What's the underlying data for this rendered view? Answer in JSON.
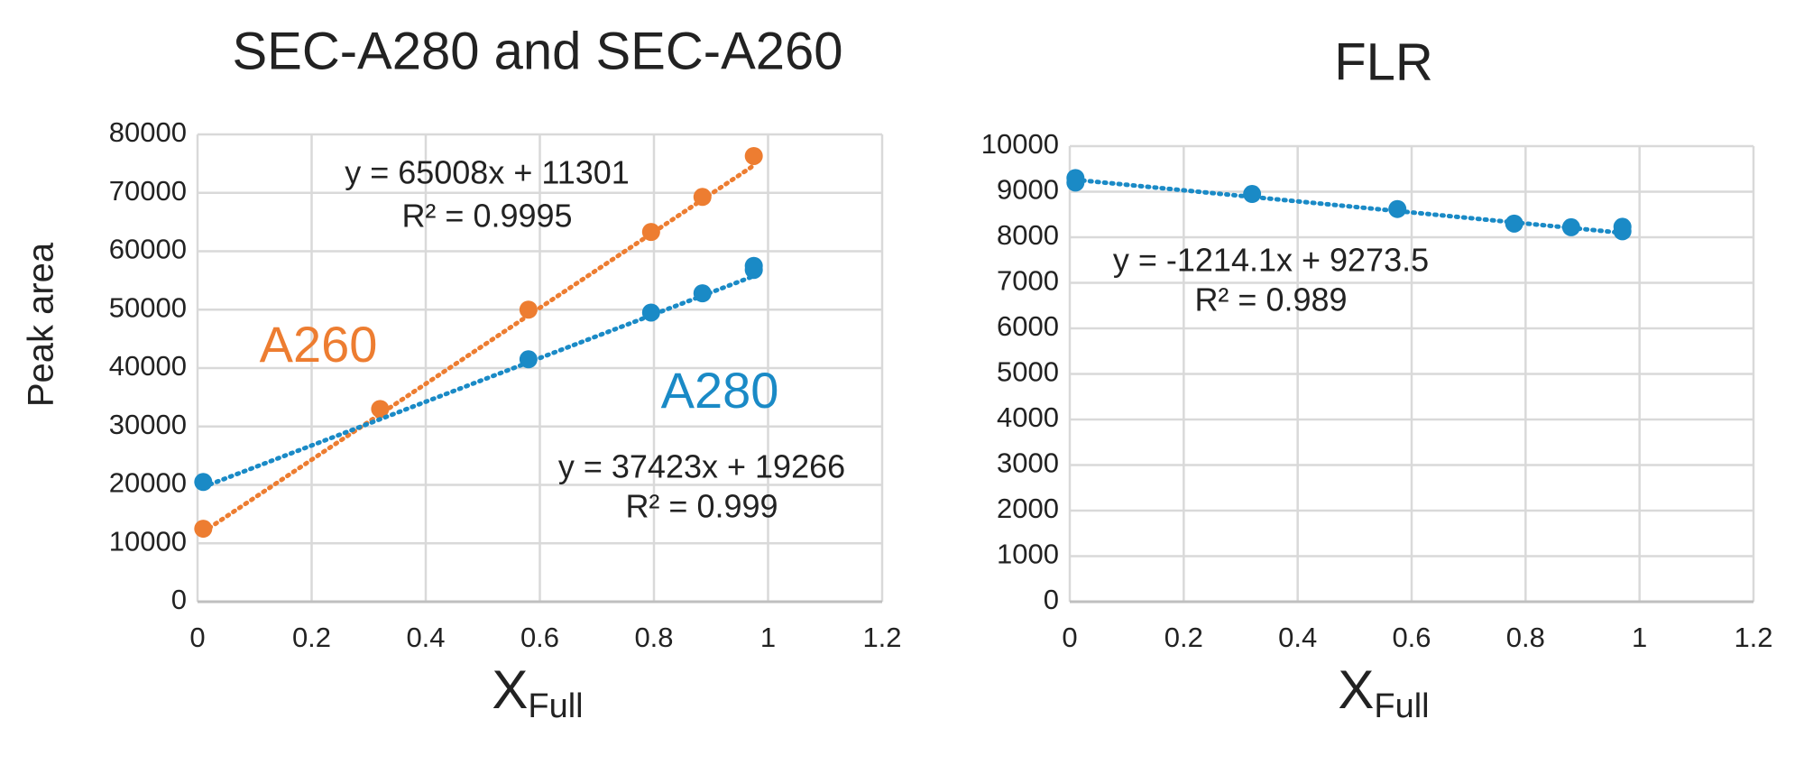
{
  "chart_data": [
    {
      "type": "scatter",
      "title": "SEC-A280 and SEC-A260",
      "y_label": "Peak area",
      "x_label": {
        "text": "X",
        "subscript": "Full"
      },
      "xlim": [
        0,
        1.2
      ],
      "xticks": [
        0,
        0.2,
        0.4,
        0.6,
        0.8,
        1,
        1.2
      ],
      "ylim": [
        0,
        80000
      ],
      "yticks": [
        0,
        10000,
        20000,
        30000,
        40000,
        50000,
        60000,
        70000,
        80000
      ],
      "grid": true,
      "series": [
        {
          "name": "A260",
          "color": "#ed7d31",
          "x": [
            0.01,
            0.32,
            0.58,
            0.795,
            0.885,
            0.975
          ],
          "values": [
            12500,
            33000,
            50000,
            63300,
            69300,
            76300
          ],
          "trendline": {
            "slope": 65008,
            "intercept": 11301
          },
          "equation": "y = 65008x + 11301",
          "r_squared": "R² = 0.9995"
        },
        {
          "name": "A280",
          "color": "#1a8ac6",
          "x": [
            0.01,
            0.58,
            0.795,
            0.885,
            0.975,
            0.975
          ],
          "values": [
            20500,
            41500,
            49500,
            52800,
            56800,
            57500
          ],
          "trendline": {
            "slope": 37423,
            "intercept": 19266
          },
          "equation": "y = 37423x + 19266",
          "r_squared": "R² = 0.999"
        }
      ]
    },
    {
      "type": "scatter",
      "title": "FLR",
      "x_label": {
        "text": "X",
        "subscript": "Full"
      },
      "xlim": [
        0,
        1.2
      ],
      "xticks": [
        0,
        0.2,
        0.4,
        0.6,
        0.8,
        1,
        1.2
      ],
      "ylim": [
        0,
        10000
      ],
      "yticks": [
        0,
        1000,
        2000,
        3000,
        4000,
        5000,
        6000,
        7000,
        8000,
        9000,
        10000
      ],
      "grid": true,
      "series": [
        {
          "color": "#1a8ac6",
          "x": [
            0.01,
            0.01,
            0.32,
            0.575,
            0.78,
            0.88,
            0.97,
            0.97
          ],
          "values": [
            9300,
            9200,
            8950,
            8620,
            8300,
            8220,
            8230,
            8130
          ],
          "trendline": {
            "slope": -1214.1,
            "intercept": 9273.5
          },
          "equation": "y = -1214.1x + 9273.5",
          "r_squared": "R² = 0.989"
        }
      ]
    }
  ]
}
